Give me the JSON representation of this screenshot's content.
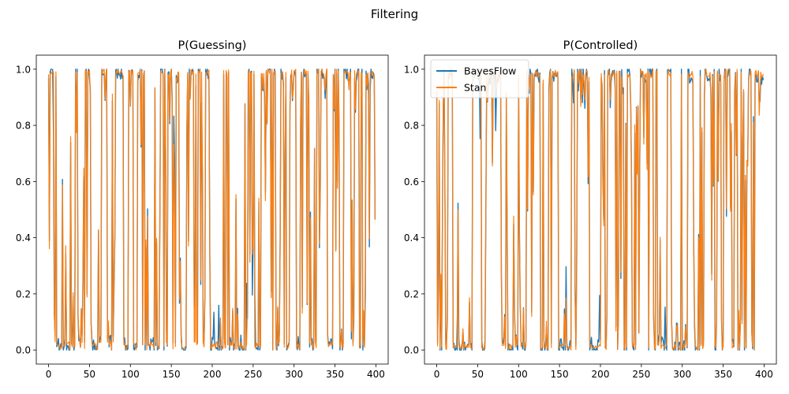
{
  "figure": {
    "suptitle": "Filtering"
  },
  "colors": {
    "bayesflow": "#1f77b4",
    "stan": "#ff7f0e"
  },
  "chart_data": [
    {
      "type": "line",
      "title": "P(Guessing)",
      "xlabel": "",
      "ylabel": "",
      "xlim": [
        -15,
        415
      ],
      "ylim": [
        -0.05,
        1.05
      ],
      "xticks": [
        0,
        50,
        100,
        150,
        200,
        250,
        300,
        350,
        400
      ],
      "yticks": [
        0.0,
        0.2,
        0.4,
        0.6,
        0.8,
        1.0
      ],
      "ytick_labels": [
        "0.0",
        "0.2",
        "0.4",
        "0.6",
        "0.8",
        "1.0"
      ],
      "grid": false,
      "legend": null,
      "n_points": 400,
      "series": [
        {
          "name": "BayesFlow",
          "color": "#1f77b4",
          "seed": 11,
          "values": []
        },
        {
          "name": "Stan",
          "color": "#ff7f0e",
          "seed": 11,
          "values": []
        }
      ]
    },
    {
      "type": "line",
      "title": "P(Controlled)",
      "xlabel": "",
      "ylabel": "",
      "xlim": [
        -15,
        415
      ],
      "ylim": [
        -0.05,
        1.05
      ],
      "xticks": [
        0,
        50,
        100,
        150,
        200,
        250,
        300,
        350,
        400
      ],
      "yticks": [
        0.0,
        0.2,
        0.4,
        0.6,
        0.8,
        1.0
      ],
      "ytick_labels": [
        "0.0",
        "0.2",
        "0.4",
        "0.6",
        "0.8",
        "1.0"
      ],
      "grid": false,
      "legend": "upper-left",
      "n_points": 400,
      "series": [
        {
          "name": "BayesFlow",
          "color": "#1f77b4",
          "seed": 11,
          "values": []
        },
        {
          "name": "Stan",
          "color": "#ff7f0e",
          "seed": 11,
          "values": []
        }
      ]
    }
  ]
}
